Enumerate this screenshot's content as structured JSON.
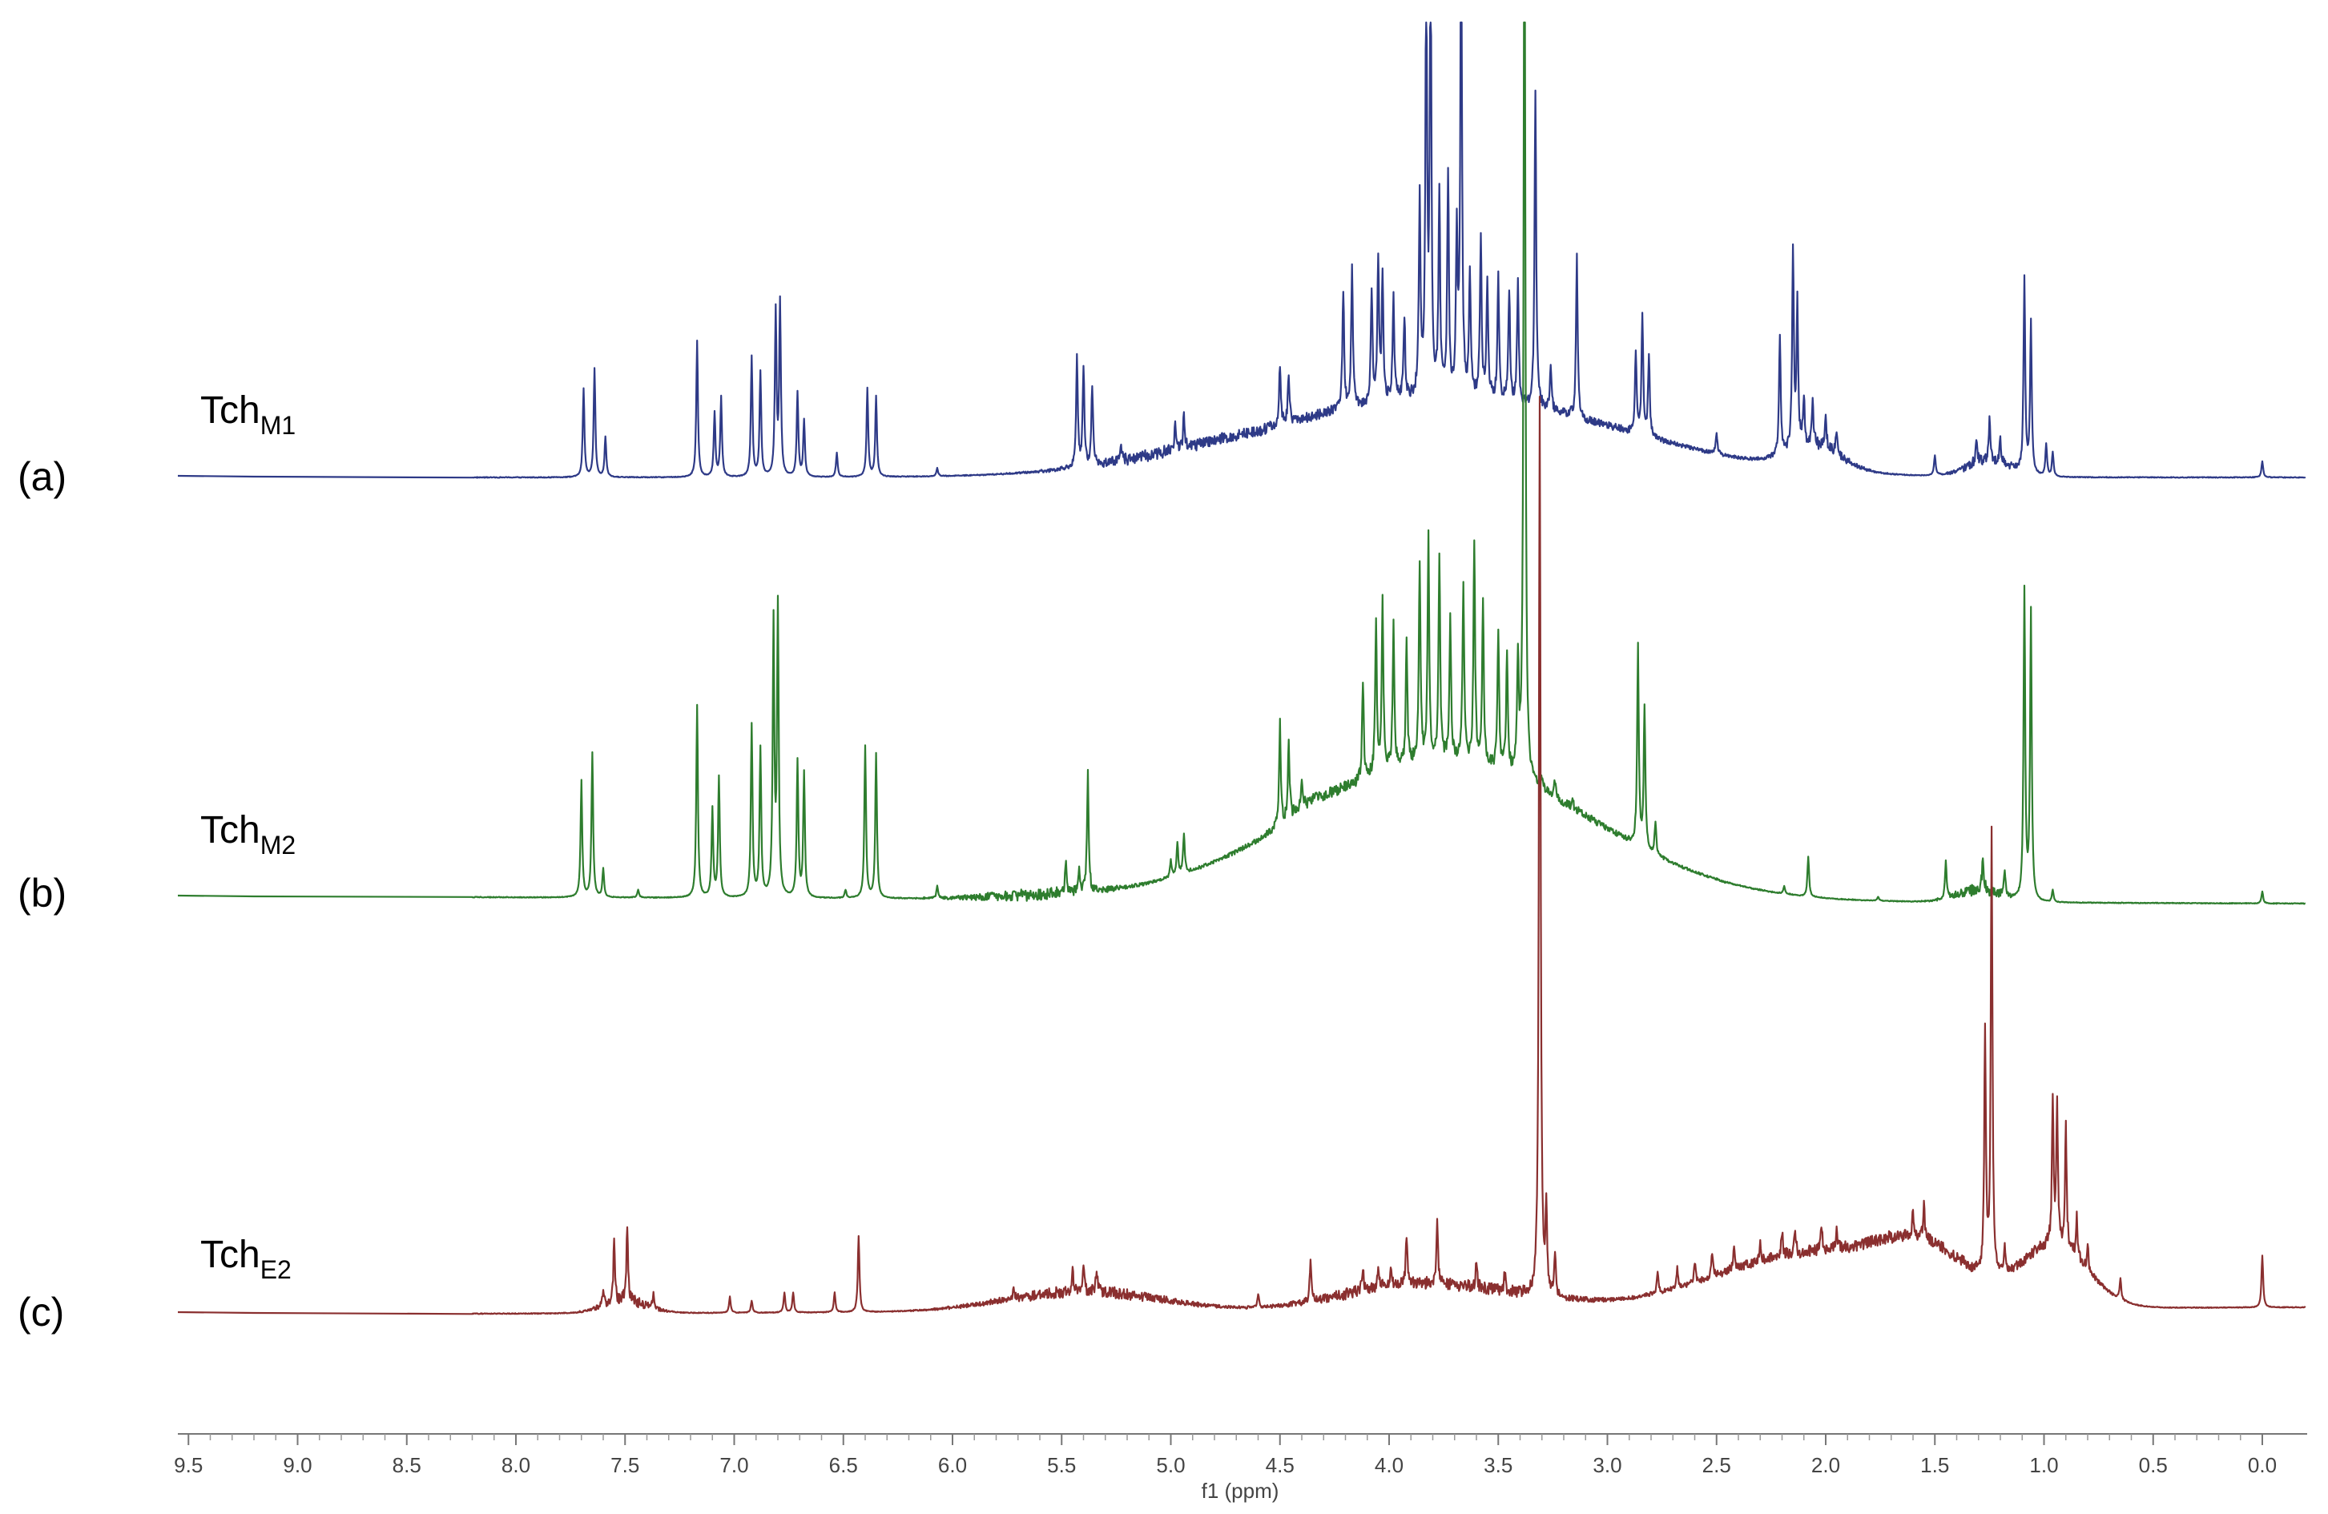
{
  "chart_data": {
    "type": "line",
    "xlabel": "f1 (ppm)",
    "x_reversed": true,
    "xlim": [
      9.5,
      -0.2
    ],
    "ticks": [
      "9.5",
      "9.0",
      "8.5",
      "8.0",
      "7.5",
      "7.0",
      "6.5",
      "6.0",
      "5.5",
      "5.0",
      "4.5",
      "4.0",
      "3.5",
      "3.0",
      "2.5",
      "2.0",
      "1.5",
      "1.0",
      "0.5",
      "0.0"
    ],
    "tick_values": [
      9.5,
      9.0,
      8.5,
      8.0,
      7.5,
      7.0,
      6.5,
      6.0,
      5.5,
      5.0,
      4.5,
      4.0,
      3.5,
      3.0,
      2.5,
      2.0,
      1.5,
      1.0,
      0.5,
      0.0
    ],
    "series": [
      {
        "panel": "(a)",
        "name_main": "Tch",
        "name_sub": "M1",
        "color": "#2e3a87",
        "peaks": [
          [
            7.69,
            0.22
          ],
          [
            7.64,
            0.27
          ],
          [
            7.59,
            0.1
          ],
          [
            7.17,
            0.34
          ],
          [
            7.09,
            0.16
          ],
          [
            7.06,
            0.2
          ],
          [
            6.92,
            0.3
          ],
          [
            6.88,
            0.26
          ],
          [
            6.81,
            0.41
          ],
          [
            6.79,
            0.43
          ],
          [
            6.71,
            0.21
          ],
          [
            6.68,
            0.14
          ],
          [
            6.53,
            0.06
          ],
          [
            6.39,
            0.22
          ],
          [
            6.35,
            0.2
          ],
          [
            6.07,
            0.02
          ],
          [
            5.43,
            0.27
          ],
          [
            5.4,
            0.25
          ],
          [
            5.36,
            0.2
          ],
          [
            5.23,
            0.04
          ],
          [
            4.98,
            0.06
          ],
          [
            4.94,
            0.08
          ],
          [
            4.5,
            0.15
          ],
          [
            4.46,
            0.12
          ],
          [
            4.21,
            0.3
          ],
          [
            4.17,
            0.35
          ],
          [
            4.08,
            0.28
          ],
          [
            4.05,
            0.35
          ],
          [
            4.03,
            0.3
          ],
          [
            3.98,
            0.25
          ],
          [
            3.93,
            0.2
          ],
          [
            3.86,
            0.5
          ],
          [
            3.83,
            1.05
          ],
          [
            3.81,
            1.1
          ],
          [
            3.77,
            0.5
          ],
          [
            3.73,
            0.55
          ],
          [
            3.69,
            0.4
          ],
          [
            3.67,
            1.2
          ],
          [
            3.63,
            0.3
          ],
          [
            3.58,
            0.4
          ],
          [
            3.55,
            0.3
          ],
          [
            3.5,
            0.3
          ],
          [
            3.45,
            0.28
          ],
          [
            3.41,
            0.3
          ],
          [
            3.33,
            0.8
          ],
          [
            3.26,
            0.12
          ],
          [
            3.14,
            0.4
          ],
          [
            2.87,
            0.2
          ],
          [
            2.84,
            0.3
          ],
          [
            2.81,
            0.2
          ],
          [
            2.5,
            0.05
          ],
          [
            2.21,
            0.3
          ],
          [
            2.15,
            0.5
          ],
          [
            2.13,
            0.35
          ],
          [
            2.1,
            0.12
          ],
          [
            2.06,
            0.1
          ],
          [
            2.0,
            0.08
          ],
          [
            1.95,
            0.06
          ],
          [
            1.5,
            0.05
          ],
          [
            1.31,
            0.06
          ],
          [
            1.25,
            0.1
          ],
          [
            1.2,
            0.06
          ],
          [
            1.09,
            0.48
          ],
          [
            1.06,
            0.38
          ],
          [
            0.99,
            0.08
          ],
          [
            0.96,
            0.06
          ],
          [
            0.0,
            0.04
          ]
        ],
        "broad": [
          [
            3.75,
            0.8,
            0.2
          ],
          [
            2.05,
            0.12,
            0.06
          ],
          [
            1.25,
            0.1,
            0.04
          ],
          [
            5.0,
            0.3,
            0.008
          ]
        ]
      },
      {
        "panel": "(b)",
        "name_main": "Tch",
        "name_sub": "M2",
        "color": "#2e7d2e",
        "peaks": [
          [
            7.7,
            0.29
          ],
          [
            7.65,
            0.36
          ],
          [
            7.6,
            0.07
          ],
          [
            7.44,
            0.02
          ],
          [
            7.17,
            0.48
          ],
          [
            7.1,
            0.22
          ],
          [
            7.07,
            0.3
          ],
          [
            6.92,
            0.43
          ],
          [
            6.88,
            0.37
          ],
          [
            6.82,
            0.68
          ],
          [
            6.8,
            0.72
          ],
          [
            6.71,
            0.34
          ],
          [
            6.68,
            0.31
          ],
          [
            6.49,
            0.02
          ],
          [
            6.4,
            0.38
          ],
          [
            6.35,
            0.36
          ],
          [
            6.07,
            0.03
          ],
          [
            5.48,
            0.08
          ],
          [
            5.42,
            0.06
          ],
          [
            5.38,
            0.3
          ],
          [
            5.0,
            0.04
          ],
          [
            4.97,
            0.08
          ],
          [
            4.94,
            0.1
          ],
          [
            4.5,
            0.26
          ],
          [
            4.46,
            0.2
          ],
          [
            4.4,
            0.08
          ],
          [
            4.12,
            0.25
          ],
          [
            4.06,
            0.38
          ],
          [
            4.03,
            0.42
          ],
          [
            3.98,
            0.35
          ],
          [
            3.92,
            0.3
          ],
          [
            3.86,
            0.5
          ],
          [
            3.82,
            0.55
          ],
          [
            3.77,
            0.5
          ],
          [
            3.72,
            0.35
          ],
          [
            3.66,
            0.45
          ],
          [
            3.61,
            0.55
          ],
          [
            3.57,
            0.4
          ],
          [
            3.5,
            0.35
          ],
          [
            3.46,
            0.3
          ],
          [
            3.41,
            0.28
          ],
          [
            3.38,
            2.6
          ],
          [
            3.3,
            0.02
          ],
          [
            3.24,
            0.04
          ],
          [
            3.16,
            0.02
          ],
          [
            2.86,
            0.5
          ],
          [
            2.83,
            0.35
          ],
          [
            2.78,
            0.08
          ],
          [
            2.19,
            0.02
          ],
          [
            2.08,
            0.1
          ],
          [
            1.76,
            0.01
          ],
          [
            1.45,
            0.09
          ],
          [
            1.28,
            0.09
          ],
          [
            1.18,
            0.06
          ],
          [
            1.09,
            0.77
          ],
          [
            1.06,
            0.72
          ],
          [
            0.96,
            0.03
          ],
          [
            0.0,
            0.03
          ]
        ],
        "broad": [
          [
            3.75,
            0.65,
            0.35
          ],
          [
            4.35,
            0.1,
            0.02
          ],
          [
            1.3,
            0.1,
            0.03
          ],
          [
            5.6,
            0.25,
            0.006
          ]
        ]
      },
      {
        "panel": "(c)",
        "name_main": "Tch",
        "name_sub": "E2",
        "color": "#8a2f2f",
        "peaks": [
          [
            7.6,
            0.04
          ],
          [
            7.55,
            0.15
          ],
          [
            7.49,
            0.19
          ],
          [
            7.37,
            0.04
          ],
          [
            7.02,
            0.04
          ],
          [
            6.92,
            0.03
          ],
          [
            6.77,
            0.05
          ],
          [
            6.73,
            0.05
          ],
          [
            6.54,
            0.05
          ],
          [
            6.43,
            0.19
          ],
          [
            5.72,
            0.03
          ],
          [
            5.45,
            0.05
          ],
          [
            5.4,
            0.06
          ],
          [
            5.34,
            0.06
          ],
          [
            4.6,
            0.03
          ],
          [
            4.36,
            0.1
          ],
          [
            4.12,
            0.06
          ],
          [
            4.05,
            0.06
          ],
          [
            3.99,
            0.05
          ],
          [
            3.92,
            0.12
          ],
          [
            3.78,
            0.16
          ],
          [
            3.6,
            0.06
          ],
          [
            3.47,
            0.04
          ],
          [
            3.31,
            2.25
          ],
          [
            3.28,
            0.2
          ],
          [
            3.24,
            0.1
          ],
          [
            2.77,
            0.05
          ],
          [
            2.68,
            0.05
          ],
          [
            2.6,
            0.05
          ],
          [
            2.52,
            0.06
          ],
          [
            2.42,
            0.05
          ],
          [
            2.3,
            0.05
          ],
          [
            2.2,
            0.06
          ],
          [
            2.14,
            0.06
          ],
          [
            2.02,
            0.07
          ],
          [
            1.95,
            0.05
          ],
          [
            1.6,
            0.06
          ],
          [
            1.55,
            0.08
          ],
          [
            1.27,
            0.6
          ],
          [
            1.24,
            1.1
          ],
          [
            1.18,
            0.06
          ],
          [
            0.96,
            0.35
          ],
          [
            0.94,
            0.35
          ],
          [
            0.9,
            0.3
          ],
          [
            0.85,
            0.1
          ],
          [
            0.8,
            0.06
          ],
          [
            0.65,
            0.05
          ],
          [
            0.0,
            0.13
          ]
        ],
        "broad": [
          [
            5.4,
            0.35,
            0.05
          ],
          [
            4.0,
            0.3,
            0.04
          ],
          [
            3.6,
            0.35,
            0.04
          ],
          [
            2.05,
            0.45,
            0.14
          ],
          [
            1.55,
            0.2,
            0.1
          ],
          [
            0.95,
            0.15,
            0.15
          ],
          [
            7.5,
            0.1,
            0.03
          ]
        ]
      }
    ]
  }
}
